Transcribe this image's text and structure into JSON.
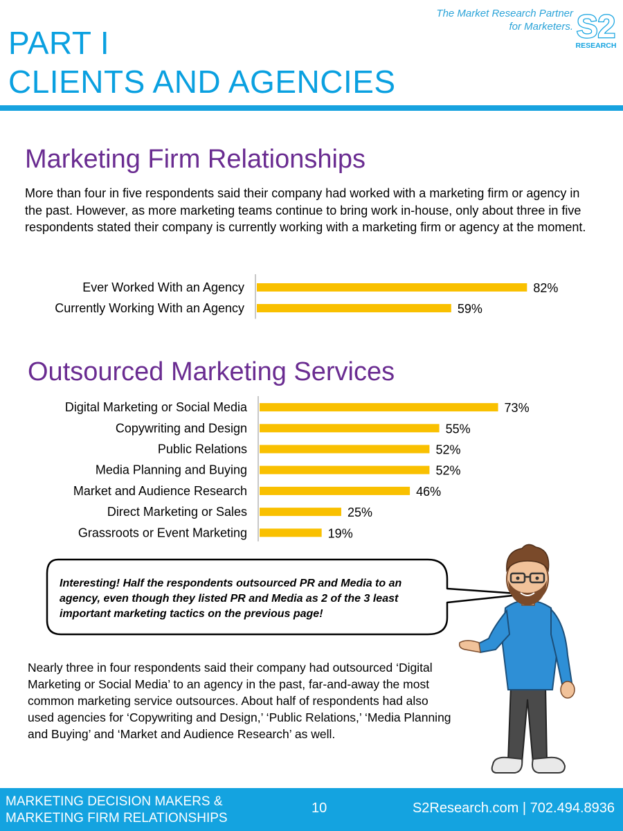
{
  "header": {
    "tagline_line1": "The Market Research Partner",
    "tagline_line2": "for Marketers.",
    "logo_mark": "S2",
    "logo_text": "RESEARCH",
    "part_line1": "PART I",
    "part_line2": "CLIENTS AND AGENCIES"
  },
  "section1": {
    "title": "Marketing Firm Relationships",
    "body": "More than four in five respondents said their company had worked with a marketing firm or agency in the past. However, as more marketing teams continue to bring work in-house, only about three in five respondents stated their company is currently working with a marketing firm or agency at the moment."
  },
  "section2": {
    "title": "Outsourced Marketing Services"
  },
  "callout": {
    "text": "Interesting! Half the respondents outsourced PR and Media to an agency, even though they listed PR and Media as 2 of the 3 least important marketing tactics on the previous page!"
  },
  "section3": {
    "body": "Nearly three in four respondents said their company had outsourced ‘Digital Marketing or Social Media’ to an agency in the past, far-and-away the most common marketing service outsources. About half of respondents had also used agencies for ‘Copywriting and Design,’ ‘Public Relations,’ ‘Media Planning and Buying’ and ‘Market and Audience Research’ as well."
  },
  "footer": {
    "left_line1": "MARKETING DECISION MAKERS &",
    "left_line2": "MARKETING FIRM RELATIONSHIPS",
    "page_number": "10",
    "contact": "S2Research.com | 702.494.8936"
  },
  "colors": {
    "bar": "#f9c000",
    "accent_blue": "#14a3e0",
    "title_purple": "#6a2c91"
  },
  "chart_data": [
    {
      "type": "bar",
      "orientation": "horizontal",
      "categories": [
        "Ever Worked With an Agency",
        "Currently Working With an Agency"
      ],
      "values": [
        82,
        59
      ],
      "labels": [
        "82%",
        "59%"
      ],
      "xlim": [
        0,
        100
      ]
    },
    {
      "type": "bar",
      "orientation": "horizontal",
      "categories": [
        "Digital Marketing or Social Media",
        "Copywriting and Design",
        "Public Relations",
        "Media Planning and Buying",
        "Market and Audience Research",
        "Direct Marketing or Sales",
        "Grassroots or Event Marketing"
      ],
      "values": [
        73,
        55,
        52,
        52,
        46,
        25,
        19
      ],
      "labels": [
        "73%",
        "55%",
        "52%",
        "52%",
        "46%",
        "25%",
        "19%"
      ],
      "xlim": [
        0,
        100
      ]
    }
  ]
}
